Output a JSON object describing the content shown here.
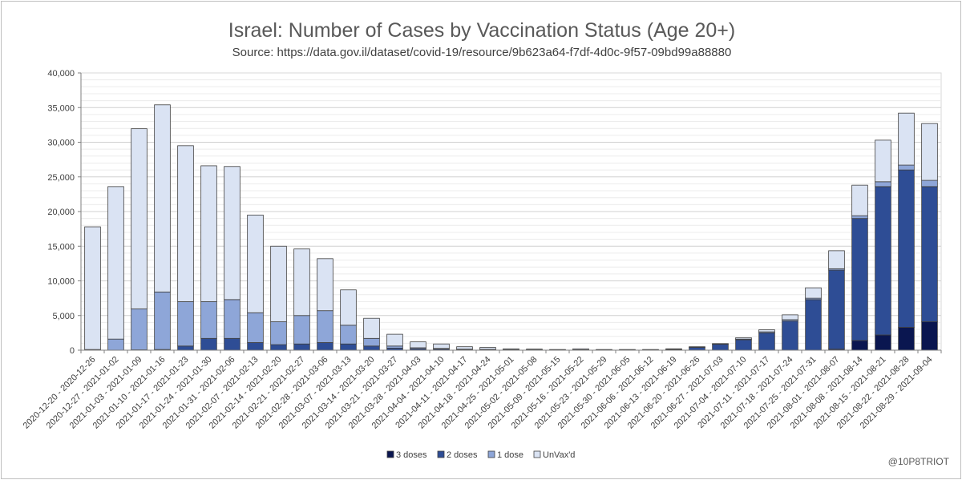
{
  "chart_data": {
    "type": "bar",
    "stacked": true,
    "title": "Israel: Number of Cases by Vaccination Status (Age 20+)",
    "subtitle": "Source: https://data.gov.il/dataset/covid-19/resource/9b623a64-f7df-4d0c-9f57-09bd99a88880",
    "xlabel": "",
    "ylabel": "",
    "ylim": [
      0,
      40000
    ],
    "yticks": [
      0,
      5000,
      10000,
      15000,
      20000,
      25000,
      30000,
      35000,
      40000
    ],
    "ytick_labels": [
      "0",
      "5,000",
      "10,000",
      "15,000",
      "20,000",
      "25,000",
      "30,000",
      "35,000",
      "40,000"
    ],
    "grid": true,
    "legend_position": "bottom",
    "categories": [
      "2020-12-20 - 2020-12-26",
      "2020-12-27 - 2021-01-02",
      "2021-01-03 - 2021-01-09",
      "2021-01-10 - 2021-01-16",
      "2021-01-17 - 2021-01-23",
      "2021-01-24 - 2021-01-30",
      "2021-01-31 - 2021-02-06",
      "2021-02-07 - 2021-02-13",
      "2021-02-14 - 2021-02-20",
      "2021-02-21 - 2021-02-27",
      "2021-02-28 - 2021-03-06",
      "2021-03-07 - 2021-03-13",
      "2021-03-14 - 2021-03-20",
      "2021-03-21 - 2021-03-27",
      "2021-03-28 - 2021-04-03",
      "2021-04-04 - 2021-04-10",
      "2021-04-11 - 2021-04-17",
      "2021-04-18 - 2021-04-24",
      "2021-04-25 - 2021-05-01",
      "2021-05-02 - 2021-05-08",
      "2021-05-09 - 2021-05-15",
      "2021-05-16 - 2021-05-22",
      "2021-05-23 - 2021-05-29",
      "2021-05-30 - 2021-06-05",
      "2021-06-06 - 2021-06-12",
      "2021-06-13 - 2021-06-19",
      "2021-06-20 - 2021-06-26",
      "2021-06-27 - 2021-07-03",
      "2021-07-04 - 2021-07-10",
      "2021-07-11 - 2021-07-17",
      "2021-07-18 - 2021-07-24",
      "2021-07-25 - 2021-07-31",
      "2021-08-01 - 2021-08-07",
      "2021-08-08 - 2021-08-14",
      "2021-08-15 - 2021-08-21",
      "2021-08-22 - 2021-08-28",
      "2021-08-29 - 2021-09-04"
    ],
    "series": [
      {
        "name": "3 doses",
        "color": "#0a1650",
        "values": [
          0,
          0,
          0,
          0,
          0,
          0,
          0,
          0,
          0,
          0,
          0,
          0,
          0,
          0,
          0,
          0,
          0,
          0,
          0,
          0,
          0,
          0,
          0,
          0,
          0,
          0,
          0,
          0,
          0,
          0,
          0,
          0,
          150,
          1400,
          2200,
          3300,
          4100
        ]
      },
      {
        "name": "2 doses",
        "color": "#2e4d95",
        "values": [
          0,
          0,
          50,
          100,
          600,
          1700,
          1700,
          1100,
          800,
          900,
          1100,
          900,
          600,
          300,
          200,
          150,
          100,
          80,
          60,
          50,
          40,
          60,
          40,
          30,
          40,
          100,
          400,
          850,
          1500,
          2500,
          4200,
          7300,
          11400,
          17600,
          21400,
          22700,
          19500
        ]
      },
      {
        "name": "1 dose",
        "color": "#8ea6d8",
        "values": [
          100,
          1600,
          5900,
          8300,
          6400,
          5300,
          5600,
          4300,
          3300,
          4100,
          4600,
          2700,
          1100,
          300,
          150,
          100,
          50,
          40,
          20,
          10,
          10,
          10,
          10,
          10,
          10,
          20,
          50,
          50,
          100,
          150,
          200,
          200,
          200,
          400,
          700,
          700,
          900
        ]
      },
      {
        "name": "UnVax'd",
        "color": "#dae3f3",
        "values": [
          17700,
          22000,
          26000,
          27000,
          22500,
          19600,
          19200,
          14100,
          10900,
          9600,
          7500,
          5100,
          2900,
          1700,
          850,
          650,
          350,
          280,
          120,
          100,
          50,
          130,
          50,
          60,
          50,
          80,
          50,
          50,
          200,
          300,
          700,
          1500,
          2600,
          4400,
          6000,
          7500,
          8200
        ]
      }
    ]
  },
  "credit": "@10P8TRIOT"
}
